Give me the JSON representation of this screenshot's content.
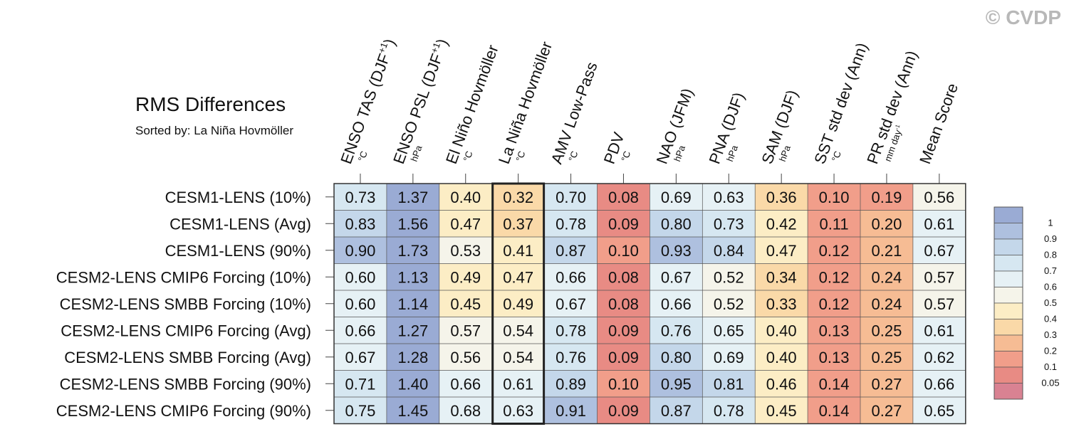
{
  "copyright": "© CVDP",
  "chart_data": {
    "type": "heatmap",
    "title": "RMS Differences",
    "subtitle": "Sorted by: La Niña Hovmöller",
    "highlighted_column": "La Niña Hovmöller",
    "columns": [
      {
        "name": "ENSO TAS (DJF+1)",
        "base": "ENSO TAS (DJF",
        "sup": "+1",
        "close": ")",
        "unit": "°C"
      },
      {
        "name": "ENSO PSL (DJF+1)",
        "base": "ENSO PSL (DJF",
        "sup": "+1",
        "close": ")",
        "unit": "hPa"
      },
      {
        "name": "El Niño Hovmöller",
        "base": "El Niño Hovmöller",
        "unit": "°C"
      },
      {
        "name": "La Niña Hovmöller",
        "base": "La Niña Hovmöller",
        "unit": "°C"
      },
      {
        "name": "AMV Low-Pass",
        "base": "AMV Low-Pass",
        "unit": "°C"
      },
      {
        "name": "PDV",
        "base": "PDV",
        "unit": "°C"
      },
      {
        "name": "NAO (JFM)",
        "base": "NAO (JFM)",
        "unit": "hPa"
      },
      {
        "name": "PNA (DJF)",
        "base": "PNA (DJF)",
        "unit": "hPa"
      },
      {
        "name": "SAM (DJF)",
        "base": "SAM (DJF)",
        "unit": "hPa"
      },
      {
        "name": "SST std dev (Ann)",
        "base": "SST std dev (Ann)",
        "unit": "°C"
      },
      {
        "name": "PR std dev (Ann)",
        "base": "PR std dev (Ann)",
        "unit": "mm day-1"
      },
      {
        "name": "Mean Score",
        "base": "Mean Score",
        "unit": ""
      }
    ],
    "rows": [
      "CESM1-LENS (10%)",
      "CESM1-LENS (Avg)",
      "CESM1-LENS (90%)",
      "CESM2-LENS CMIP6 Forcing (10%)",
      "CESM2-LENS SMBB Forcing (10%)",
      "CESM2-LENS CMIP6 Forcing (Avg)",
      "CESM2-LENS SMBB Forcing (Avg)",
      "CESM2-LENS SMBB Forcing (90%)",
      "CESM2-LENS CMIP6 Forcing (90%)"
    ],
    "values": [
      [
        "0.73",
        "1.37",
        "0.40",
        "0.32",
        "0.70",
        "0.08",
        "0.69",
        "0.63",
        "0.36",
        "0.10",
        "0.19",
        "0.56"
      ],
      [
        "0.83",
        "1.56",
        "0.47",
        "0.37",
        "0.78",
        "0.09",
        "0.80",
        "0.73",
        "0.42",
        "0.11",
        "0.20",
        "0.61"
      ],
      [
        "0.90",
        "1.73",
        "0.53",
        "0.41",
        "0.87",
        "0.10",
        "0.93",
        "0.84",
        "0.47",
        "0.12",
        "0.21",
        "0.67"
      ],
      [
        "0.60",
        "1.13",
        "0.49",
        "0.47",
        "0.66",
        "0.08",
        "0.67",
        "0.52",
        "0.34",
        "0.12",
        "0.24",
        "0.57"
      ],
      [
        "0.60",
        "1.14",
        "0.45",
        "0.49",
        "0.67",
        "0.08",
        "0.66",
        "0.52",
        "0.33",
        "0.12",
        "0.24",
        "0.57"
      ],
      [
        "0.66",
        "1.27",
        "0.57",
        "0.54",
        "0.78",
        "0.09",
        "0.76",
        "0.65",
        "0.40",
        "0.13",
        "0.25",
        "0.61"
      ],
      [
        "0.67",
        "1.28",
        "0.56",
        "0.54",
        "0.76",
        "0.09",
        "0.80",
        "0.69",
        "0.40",
        "0.13",
        "0.25",
        "0.62"
      ],
      [
        "0.71",
        "1.40",
        "0.66",
        "0.61",
        "0.89",
        "0.10",
        "0.95",
        "0.81",
        "0.46",
        "0.14",
        "0.27",
        "0.66"
      ],
      [
        "0.75",
        "1.45",
        "0.68",
        "0.63",
        "0.91",
        "0.09",
        "0.87",
        "0.78",
        "0.45",
        "0.14",
        "0.27",
        "0.65"
      ]
    ],
    "colorbar": {
      "labels": [
        "1",
        "0.9",
        "0.8",
        "0.7",
        "0.6",
        "0.5",
        "0.4",
        "0.3",
        "0.2",
        "0.1",
        "0.05"
      ],
      "colors": [
        "#9aabd4",
        "#aec0df",
        "#c4d7ea",
        "#d6e7f1",
        "#e6f1f5",
        "#f5f4ea",
        "#fcedc5",
        "#fad9a8",
        "#f6bc94",
        "#f19e8a",
        "#e88b84",
        "#d98292"
      ]
    }
  }
}
